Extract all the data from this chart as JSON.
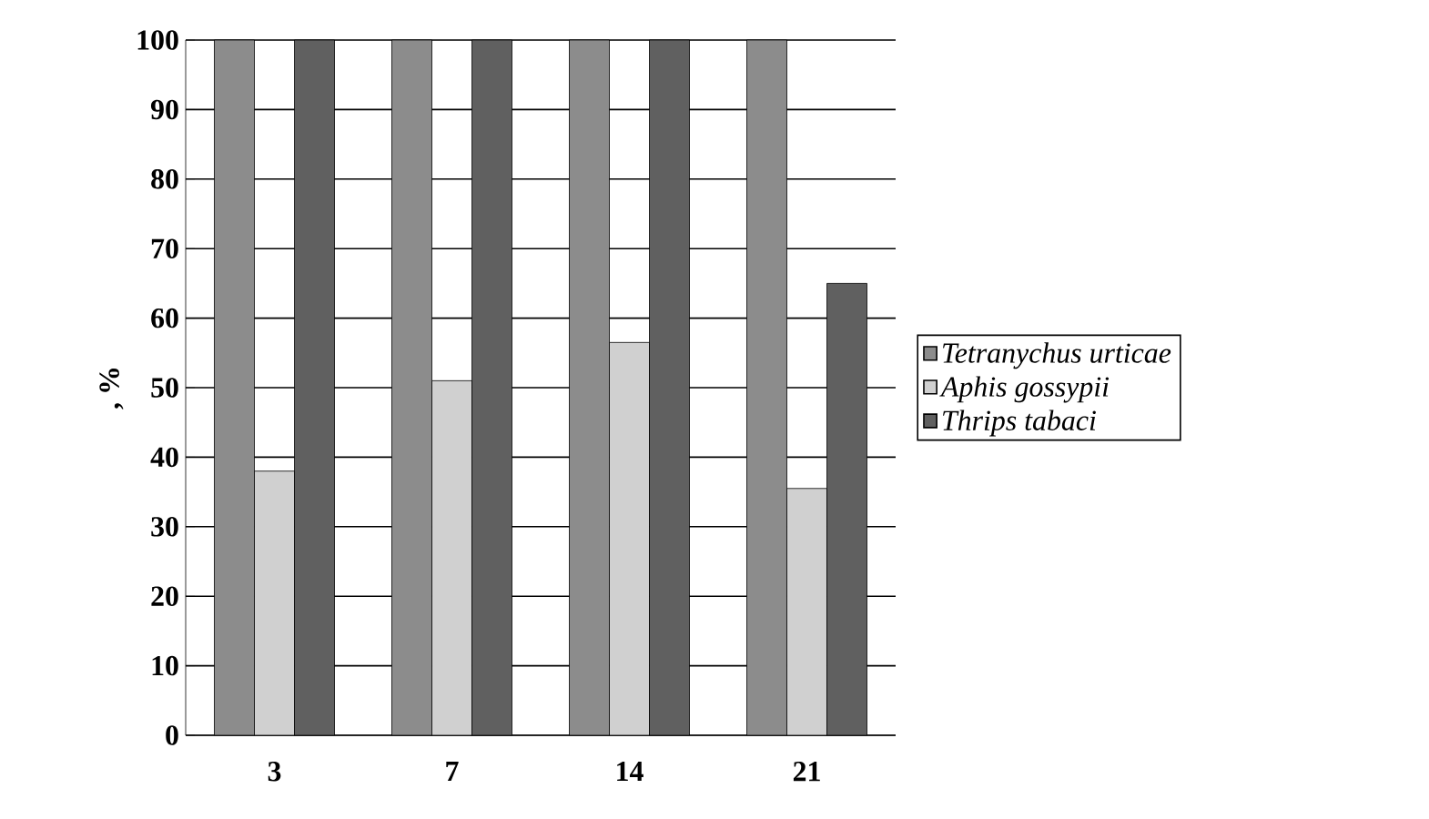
{
  "chart_data": {
    "type": "bar",
    "ylabel": ", %",
    "categories": [
      "3",
      "7",
      "14",
      "21"
    ],
    "series": [
      {
        "name": "Tetranychus urticae",
        "color": "#8c8c8c",
        "values": [
          100,
          100,
          100,
          100
        ]
      },
      {
        "name": "Aphis gossypii",
        "color": "#d0d0d0",
        "values": [
          38,
          51,
          56.5,
          35.5
        ]
      },
      {
        "name": "Thrips tabaci",
        "color": "#606060",
        "values": [
          100,
          100,
          100,
          65
        ]
      }
    ],
    "ylim": [
      0,
      100
    ],
    "yticks": [
      0,
      10,
      20,
      30,
      40,
      50,
      60,
      70,
      80,
      90,
      100
    ],
    "grid": "y",
    "legend": "right"
  }
}
